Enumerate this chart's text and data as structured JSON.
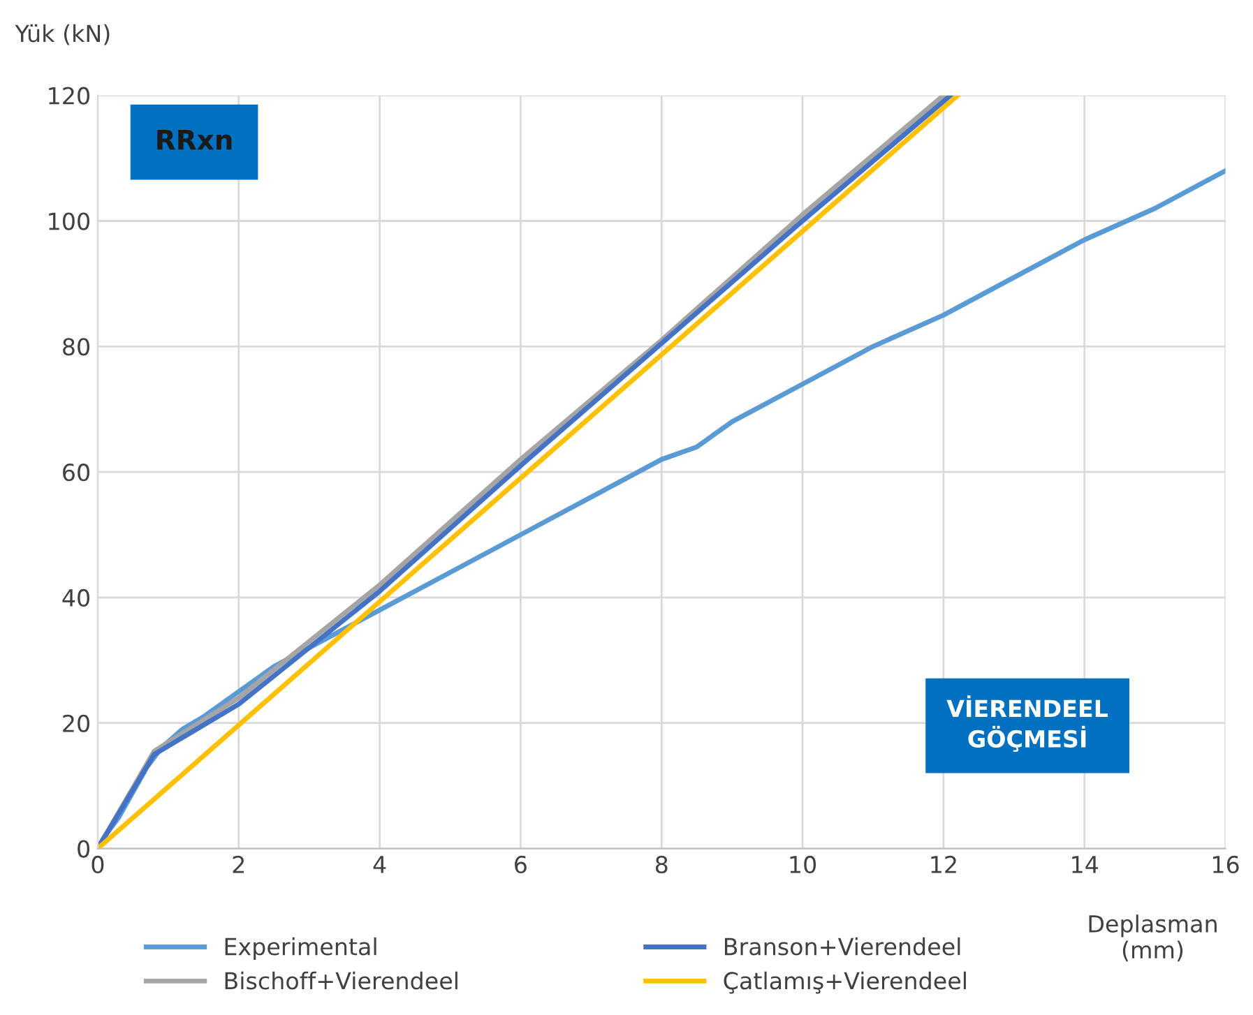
{
  "chart_data": {
    "type": "line",
    "ylabel": "Yük (kN)",
    "xlabel": "Deplasman\n(mm)",
    "xlim": [
      0,
      16
    ],
    "xticks": [
      0,
      2,
      4,
      6,
      8,
      10,
      12,
      14,
      16
    ],
    "ylim": [
      0,
      120
    ],
    "yticks": [
      0,
      20,
      40,
      60,
      80,
      100,
      120
    ],
    "grid": true,
    "legend": "bottom",
    "marker": "none",
    "line_style": "solid",
    "annotations": [
      "RRxn",
      "VİERENDEEL\nGÖÇMESİ"
    ],
    "series": [
      {
        "name": "Experimental",
        "color": "#5b9bd5",
        "x": [
          0,
          0.1,
          0.3,
          0.5,
          0.7,
          0.9,
          1.2,
          1.5,
          2,
          2.5,
          3,
          3.5,
          4,
          5,
          6,
          7,
          8,
          8.5,
          9,
          10,
          11,
          12,
          13,
          14,
          15,
          16
        ],
        "values": [
          0,
          2,
          5,
          9,
          13,
          16,
          19,
          21,
          25,
          29,
          32,
          35,
          38,
          44,
          50,
          56,
          62,
          64,
          68,
          74,
          80,
          85,
          91,
          97,
          102,
          108
        ]
      },
      {
        "name": "Bischoff+Vierendeel",
        "color": "#a5a5a5",
        "x": [
          0,
          0.8,
          2,
          3,
          4,
          6,
          8,
          10,
          12
        ],
        "values": [
          0,
          15.5,
          24,
          33,
          42,
          62,
          81,
          101,
          120
        ]
      },
      {
        "name": "Branson+Vierendeel",
        "color": "#4472c4",
        "x": [
          0,
          0.8,
          2,
          3,
          4,
          6,
          8,
          10,
          12.1
        ],
        "values": [
          0,
          15,
          23,
          32,
          41,
          61,
          80.5,
          100,
          120
        ]
      },
      {
        "name": "Çatlamış+Vierendeel",
        "color": "#ffc000",
        "x": [
          0,
          12.2
        ],
        "values": [
          0,
          120
        ]
      }
    ]
  }
}
